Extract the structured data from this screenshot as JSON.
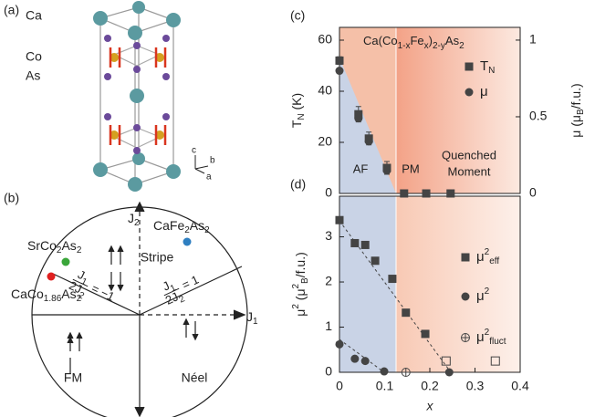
{
  "diagrams": {
    "a": {
      "panel": "(a)",
      "labels": [
        {
          "text": "Ca",
          "color": "#5b9aa0"
        },
        {
          "text": "Co",
          "color": "#d4a020"
        },
        {
          "text": "As",
          "color": "#7a5a9a"
        }
      ],
      "axes": [
        "c",
        "b",
        "a"
      ]
    },
    "b": {
      "panel": "(b)",
      "j2": [
        {
          "text": "J"
        },
        {
          "text": "2",
          "shift": "sub"
        }
      ],
      "j1": [
        {
          "text": "J"
        },
        {
          "text": "1",
          "shift": "sub"
        }
      ],
      "compounds": [
        {
          "name": [
            {
              "text": "CaFe"
            },
            {
              "text": "2",
              "shift": "sub"
            },
            {
              "text": "As"
            },
            {
              "text": "2",
              "shift": "sub"
            }
          ],
          "color": "#2f7fc1"
        },
        {
          "name": [
            {
              "text": "SrCo"
            },
            {
              "text": "2",
              "shift": "sub"
            },
            {
              "text": "As"
            },
            {
              "text": "2",
              "shift": "sub"
            }
          ],
          "color": "#3aa63a"
        },
        {
          "name": [
            {
              "text": "CaCo"
            },
            {
              "text": "1.86",
              "shift": "sub"
            },
            {
              "text": "As"
            },
            {
              "text": "2",
              "shift": "sub"
            }
          ],
          "color": "#e02020"
        }
      ],
      "regions": [
        "Stripe",
        "FM",
        "Néel"
      ],
      "ratios": [
        {
          "num": [
            {
              "text": "J"
            },
            {
              "text": "1",
              "shift": "sub"
            }
          ],
          "den": [
            {
              "text": "2J"
            },
            {
              "text": "2",
              "shift": "sub"
            }
          ],
          "eq": "= −1"
        },
        {
          "num": [
            {
              "text": "J"
            },
            {
              "text": "1",
              "shift": "sub"
            }
          ],
          "den": [
            {
              "text": "2J"
            },
            {
              "text": "2",
              "shift": "sub"
            }
          ],
          "eq": "= 1"
        }
      ]
    }
  },
  "chart_data": [
    {
      "type": "scatter",
      "panel": "(c)",
      "title": [
        {
          "text": "Ca(Co"
        },
        {
          "text": "1-x",
          "shift": "sub"
        },
        {
          "text": "Fe"
        },
        {
          "text": "x",
          "shift": "sub"
        },
        {
          "text": ")"
        },
        {
          "text": "2-y",
          "shift": "sub"
        },
        {
          "text": "As"
        },
        {
          "text": "2",
          "shift": "sub"
        }
      ],
      "ylabel": [
        {
          "text": "T"
        },
        {
          "text": "N",
          "shift": "sub"
        },
        {
          "text": " (K)"
        }
      ],
      "y2label": [
        {
          "text": "μ ("
        },
        {
          "text": "μ"
        },
        {
          "text": "B",
          "shift": "sub"
        },
        {
          "text": "/f.u.)"
        }
      ],
      "xlim": [
        0,
        0.4
      ],
      "ylim": [
        0,
        65
      ],
      "yticks": [
        0,
        20,
        40,
        60
      ],
      "y2lim": [
        0,
        1.083
      ],
      "y2ticks": [
        0,
        0.5,
        1
      ],
      "annotations": [
        "AF",
        "PM",
        "Quenched",
        "Moment"
      ],
      "series": [
        {
          "name": [
            {
              "text": "T"
            },
            {
              "text": "N",
              "shift": "sub"
            }
          ],
          "marker": "square",
          "color": "#444444",
          "x": [
            0,
            0.042,
            0.065,
            0.105,
            0.143,
            0.192,
            0.246
          ],
          "values": [
            52,
            31,
            21.5,
            10,
            0,
            0,
            0
          ],
          "errors": [
            1.5,
            3,
            2.5,
            2.5,
            0,
            0,
            0
          ]
        },
        {
          "name": [
            {
              "text": "μ"
            }
          ],
          "marker": "circle",
          "color": "#444444",
          "axis": "y2",
          "x": [
            0,
            0.042,
            0.065,
            0.105
          ],
          "values": [
            0.8,
            0.49,
            0.34,
            0.15
          ]
        }
      ]
    },
    {
      "type": "scatter",
      "panel": "(d)",
      "ylabel": [
        {
          "text": "μ"
        },
        {
          "text": "2",
          "shift": "sup"
        },
        {
          "text": " (μ"
        },
        {
          "text": "2",
          "shift": "sup"
        },
        {
          "text": "B",
          "shift": "sub"
        },
        {
          "text": "/f.u.)"
        }
      ],
      "xlabel": "x",
      "xlim": [
        0,
        0.4
      ],
      "xticks": [
        0,
        0.1,
        0.2,
        0.3,
        0.4
      ],
      "ylim": [
        0,
        3.9
      ],
      "yticks": [
        0,
        1,
        2,
        3
      ],
      "series": [
        {
          "name": [
            {
              "text": "μ"
            },
            {
              "text": "2",
              "shift": "sup"
            },
            {
              "text": "eff",
              "shift": "sub"
            }
          ],
          "marker": "square",
          "color": "#444444",
          "x": [
            0,
            0.034,
            0.057,
            0.079,
            0.117,
            0.147,
            0.19
          ],
          "values": [
            3.37,
            2.86,
            2.82,
            2.47,
            2.07,
            1.32,
            0.85
          ]
        },
        {
          "name": [
            {
              "text": "μ"
            },
            {
              "text": "2",
              "shift": "sup"
            }
          ],
          "marker": "circle",
          "color": "#444444",
          "x": [
            0,
            0.034,
            0.057,
            0.099,
            0.243
          ],
          "values": [
            0.62,
            0.3,
            0.25,
            0.02,
            0
          ]
        },
        {
          "name": [
            {
              "text": "μ"
            },
            {
              "text": "2",
              "shift": "sup"
            },
            {
              "text": "fluct",
              "shift": "sub"
            }
          ],
          "marker": "circle-plus",
          "color": "#444444",
          "x": [
            0.147
          ],
          "values": [
            0
          ]
        },
        {
          "marker": "open-square",
          "color": "#444444",
          "x": [
            0.236,
            0.345
          ],
          "values": [
            0.25,
            0.25
          ]
        }
      ]
    }
  ]
}
